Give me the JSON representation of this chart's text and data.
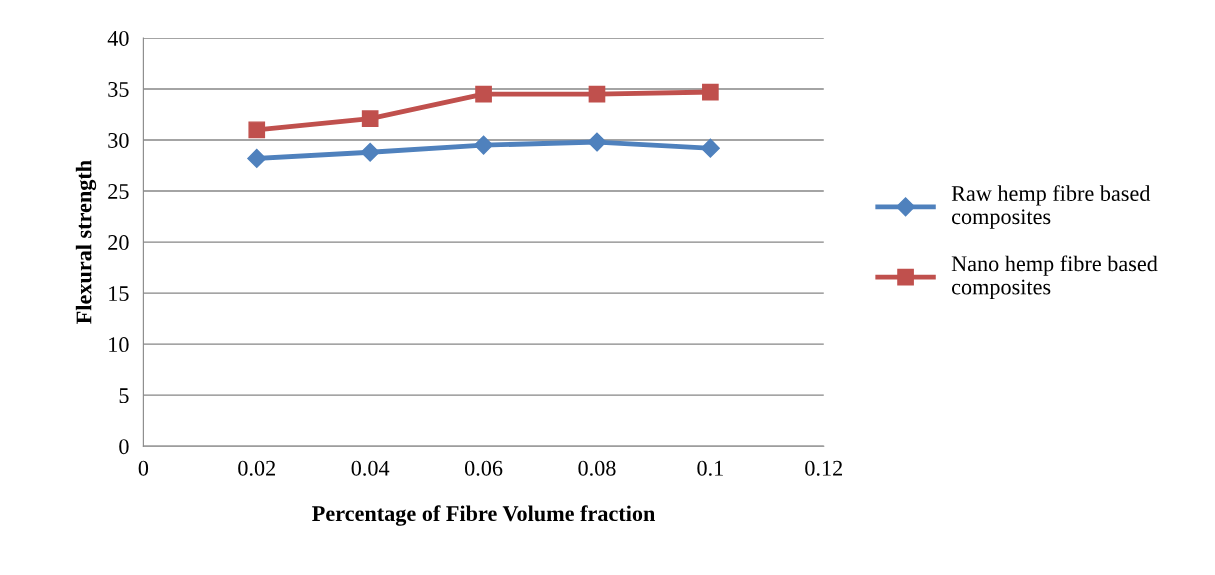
{
  "chart_data": {
    "type": "line",
    "xlabel": "Percentage of Fibre Volume fraction",
    "ylabel": "Flexural strength",
    "x": [
      0.02,
      0.04,
      0.06,
      0.08,
      0.1
    ],
    "series": [
      {
        "name": "Raw hemp fibre based composites",
        "color": "#4f81bd",
        "marker": "diamond",
        "values": [
          28.2,
          28.8,
          29.5,
          29.8,
          29.2
        ]
      },
      {
        "name": "Nano hemp fibre based composites",
        "color": "#c0504d",
        "marker": "square",
        "values": [
          31.0,
          32.1,
          34.5,
          34.5,
          34.7
        ]
      }
    ],
    "xlim": [
      0,
      0.12
    ],
    "xticks": [
      0,
      0.02,
      0.04,
      0.06,
      0.08,
      0.1,
      0.12
    ],
    "ylim": [
      0,
      40
    ],
    "yticks": [
      0,
      5,
      10,
      15,
      20,
      25,
      30,
      35,
      40
    ],
    "grid": "y",
    "legend": "right",
    "line_style": "solid"
  }
}
